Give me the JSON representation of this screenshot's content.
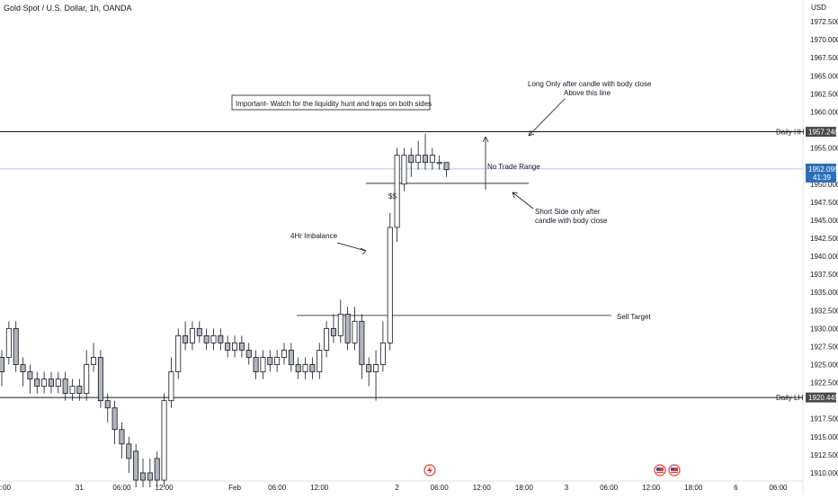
{
  "header": {
    "symbol_title": "Gold Spot / U.S. Dollar, 1h, OANDA",
    "currency": "USD"
  },
  "colors": {
    "candle_body": "#b2b5be",
    "candle_outline": "#131722",
    "line": "#131722",
    "axis_text": "#131722",
    "price_tag_bg": "#4a4a4a",
    "current_price_bg": "#2a6fba",
    "current_price_line": "#b3c7e6",
    "event_red": "#e53935",
    "event_flag_blue": "#2a5ba8"
  },
  "chart_data": {
    "type": "candlestick",
    "y_axis": {
      "min": 1909.0,
      "max": 1975.0,
      "ticks": [
        "1972.500",
        "1970.000",
        "1967.500",
        "1965.000",
        "1962.500",
        "1960.000",
        "1955.000",
        "1950.000",
        "1947.500",
        "1945.000",
        "1942.500",
        "1940.000",
        "1937.500",
        "1935.000",
        "1932.500",
        "1930.000",
        "1927.500",
        "1925.000",
        "1922.500",
        "1917.500",
        "1915.000",
        "1912.500",
        "1910.000"
      ]
    },
    "x_axis": {
      "ticks": [
        {
          "label": "12:00",
          "bar": 0
        },
        {
          "label": "31",
          "bar": 11
        },
        {
          "label": "06:00",
          "bar": 17
        },
        {
          "label": "12:00",
          "bar": 23
        },
        {
          "label": "Feb",
          "bar": 33
        },
        {
          "label": "06:00",
          "bar": 39
        },
        {
          "label": "12:00",
          "bar": 45
        },
        {
          "label": "2",
          "bar": 56
        },
        {
          "label": "06:00",
          "bar": 62
        },
        {
          "label": "12:00",
          "bar": 68
        },
        {
          "label": "18:00",
          "bar": 74
        },
        {
          "label": "3",
          "bar": 80
        },
        {
          "label": "06:00",
          "bar": 86
        },
        {
          "label": "12:00",
          "bar": 92
        },
        {
          "label": "18:00",
          "bar": 98
        },
        {
          "label": "6",
          "bar": 104
        },
        {
          "label": "06:00",
          "bar": 110
        }
      ]
    },
    "candles": [
      [
        1926,
        1924,
        1927,
        1922
      ],
      [
        1926,
        1930,
        1931,
        1925
      ],
      [
        1930,
        1925,
        1931,
        1924
      ],
      [
        1925,
        1924,
        1926,
        1922
      ],
      [
        1924,
        1923,
        1925,
        1921
      ],
      [
        1923,
        1922,
        1924,
        1921
      ],
      [
        1922,
        1923,
        1924,
        1921
      ],
      [
        1923,
        1922,
        1924,
        1921
      ],
      [
        1922,
        1923,
        1924,
        1921
      ],
      [
        1923,
        1921,
        1924,
        1920
      ],
      [
        1921,
        1922,
        1923,
        1920
      ],
      [
        1922,
        1921,
        1923,
        1920
      ],
      [
        1921,
        1925,
        1927,
        1920
      ],
      [
        1925,
        1926,
        1928,
        1924
      ],
      [
        1926,
        1920,
        1927,
        1919
      ],
      [
        1920,
        1919,
        1921,
        1917
      ],
      [
        1919,
        1916,
        1920,
        1914
      ],
      [
        1916,
        1914,
        1917,
        1912
      ],
      [
        1914,
        1912,
        1915,
        1910
      ],
      [
        1913,
        1909,
        1914,
        1908
      ],
      [
        1910,
        1909,
        1912,
        1908
      ],
      [
        1910,
        1909,
        1912,
        1908
      ],
      [
        1912,
        1909,
        1913,
        1908
      ],
      [
        1909,
        1920,
        1921,
        1908
      ],
      [
        1920,
        1924,
        1926,
        1919
      ],
      [
        1924,
        1929,
        1930,
        1923
      ],
      [
        1929,
        1928,
        1931,
        1927
      ],
      [
        1928,
        1930,
        1931,
        1927
      ],
      [
        1930,
        1929,
        1931,
        1928
      ],
      [
        1929,
        1928,
        1930,
        1927
      ],
      [
        1928,
        1929,
        1930,
        1927
      ],
      [
        1929,
        1928,
        1930,
        1927
      ],
      [
        1928,
        1927,
        1929,
        1926
      ],
      [
        1927,
        1928,
        1929,
        1926
      ],
      [
        1928,
        1927,
        1929,
        1926
      ],
      [
        1927,
        1926,
        1928,
        1925
      ],
      [
        1926,
        1924,
        1927,
        1923
      ],
      [
        1924,
        1926,
        1927,
        1923
      ],
      [
        1926,
        1925,
        1927,
        1924
      ],
      [
        1925,
        1926,
        1927,
        1924
      ],
      [
        1926,
        1927,
        1928,
        1925
      ],
      [
        1927,
        1925,
        1928,
        1924
      ],
      [
        1925,
        1924,
        1926,
        1923
      ],
      [
        1924,
        1925,
        1926,
        1923
      ],
      [
        1925,
        1924,
        1926,
        1923
      ],
      [
        1924,
        1927,
        1928,
        1923
      ],
      [
        1927,
        1930,
        1931,
        1926
      ],
      [
        1930,
        1929,
        1932,
        1928
      ],
      [
        1929,
        1932,
        1934,
        1928
      ],
      [
        1932,
        1928,
        1933,
        1927
      ],
      [
        1928,
        1931,
        1933,
        1927
      ],
      [
        1931,
        1925,
        1932,
        1923
      ],
      [
        1925,
        1924,
        1926,
        1922
      ],
      [
        1924,
        1925,
        1927,
        1920
      ],
      [
        1925,
        1928,
        1931,
        1924
      ],
      [
        1928,
        1944,
        1946,
        1927
      ],
      [
        1944,
        1954,
        1955,
        1942
      ],
      [
        1950,
        1954,
        1955,
        1949
      ],
      [
        1954,
        1953,
        1955,
        1951
      ],
      [
        1953,
        1954,
        1956,
        1952
      ],
      [
        1954,
        1953,
        1957,
        1952
      ],
      [
        1953,
        1954,
        1955,
        1952
      ],
      [
        1953,
        1953,
        1954,
        1952
      ],
      [
        1953,
        1952,
        1953,
        1951
      ]
    ],
    "horizontal_levels": [
      {
        "name": "Daily HH",
        "price": 1957.248,
        "tag": "1957.248"
      },
      {
        "name": "Daily LH",
        "price": 1920.445,
        "tag": "1920.445"
      },
      {
        "name": "Sell Target",
        "price": 1931.8
      },
      {
        "name": "SS",
        "price": 1950.1
      }
    ],
    "current_price": {
      "price": 1952.095,
      "tag": "1952.095",
      "countdown": "41:39"
    }
  },
  "annotations": {
    "important_note": "Important-  Watch for the liquidity hunt and traps on both sides",
    "long_note_line1": "Long Only after candle with body close",
    "long_note_line2": "Above this line",
    "no_trade_range": "No Trade Range",
    "short_note_line1": "Short Side only after",
    "short_note_line2": "candle with body close",
    "imbalance": "4Hr Imbalance",
    "sell_target": "Sell Target",
    "daily_hh": "Daily HH",
    "daily_lh": "Daily LH",
    "ss": "$$"
  },
  "events": {
    "red_event_icon": "lightning-icon",
    "flag_icon": "us-flag-icon"
  }
}
